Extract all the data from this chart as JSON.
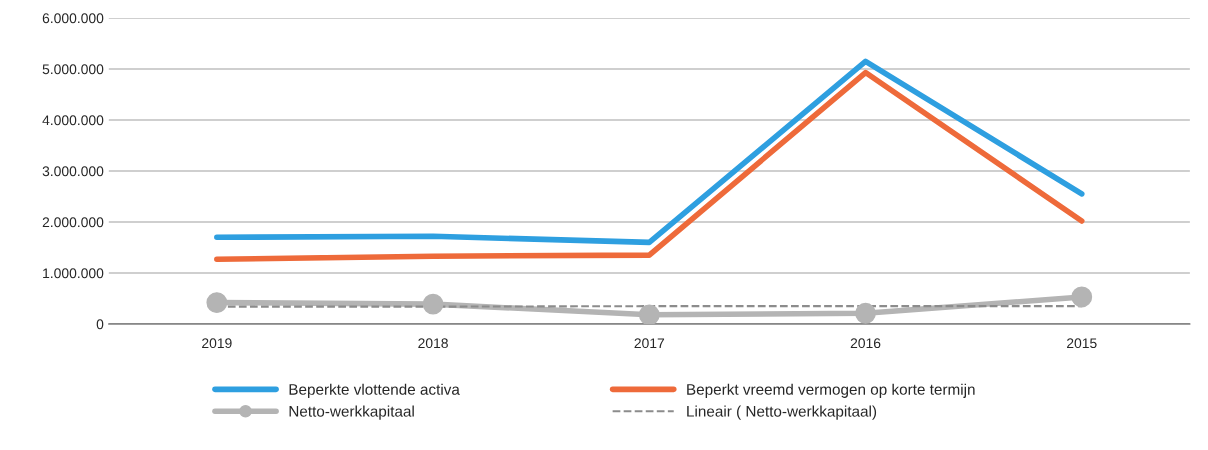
{
  "chart_data": {
    "type": "line",
    "categories": [
      "2019",
      "2018",
      "2017",
      "2016",
      "2015"
    ],
    "series": [
      {
        "name": "Beperkte vlottende activa",
        "color": "#2e9fe0",
        "values": [
          1700000,
          1720000,
          1600000,
          5150000,
          2550000
        ],
        "marker": "none"
      },
      {
        "name": "Beperkt vreemd vermogen op korte termijn",
        "color": "#ee6a3a",
        "values": [
          1270000,
          1330000,
          1350000,
          4930000,
          2020000
        ],
        "marker": "none"
      },
      {
        "name": "Netto-werkkapitaal",
        "color": "#b4b4b4",
        "values": [
          420000,
          390000,
          180000,
          210000,
          530000
        ],
        "marker": "circle"
      },
      {
        "name": "Lineair ( Netto-werkkapitaal)",
        "color": "#8c8c8c",
        "values": [
          340000,
          340000,
          350000,
          350000,
          350000
        ],
        "marker": "none",
        "line_style": "dashed"
      }
    ],
    "ylim": [
      0,
      6000000
    ],
    "yticks": [
      0,
      {
        "value": 1000000,
        "label": "1.000.000"
      },
      {
        "value": 2000000,
        "label": "2.000.000"
      },
      {
        "value": 3000000,
        "label": "3.000.000"
      },
      {
        "value": 4000000,
        "label": "4.000.000"
      },
      {
        "value": 5000000,
        "label": "5.000.000"
      },
      {
        "value": 6000000,
        "label": "6.000.000"
      }
    ],
    "grid": "y",
    "legend": "bottom"
  }
}
